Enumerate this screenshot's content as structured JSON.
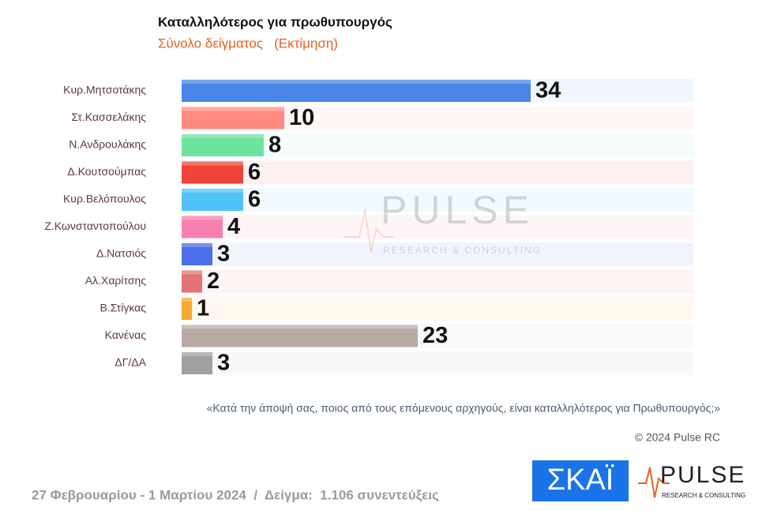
{
  "chart_data": {
    "type": "bar",
    "orientation": "horizontal",
    "title": "Καταλληλότερος για πρωθυπουργός",
    "subtitle": "Σύνολο δείγματος   (Εκτίμηση)",
    "categories": [
      "Κυρ.Μητσοτάκης",
      "Στ.Κασσελάκης",
      "Ν.Ανδρουλάκης",
      "Δ.Κουτσούμπας",
      "Κυρ.Βελόπουλος",
      "Ζ.Κωνσταντοπούλου",
      "Δ.Νατσιός",
      "Αλ.Χαρίτσης",
      "Β.Στίγκας",
      "Κανένας",
      "ΔΓ/ΔΑ"
    ],
    "values": [
      34,
      10,
      8,
      6,
      6,
      4,
      3,
      2,
      1,
      23,
      3
    ],
    "colors": [
      "#4a86e8",
      "#ff8a80",
      "#6ee3a0",
      "#f0443a",
      "#4fc3f7",
      "#f77fb0",
      "#4a6fe8",
      "#e57373",
      "#f7a830",
      "#b9aaa6",
      "#a0a0a0"
    ],
    "note": "«Κατά την άποψή σας, ποιος από τους επόμενους αρχηγούς, είναι καταλληλότερος για Πρωθυπουργός;»"
  },
  "watermark": {
    "name": "PULSE",
    "tagline": "RESEARCH & CONSULTING"
  },
  "copyright": "© 2024 Pulse RC",
  "footer": "27 Φεβρουαρίου - 1 Μαρτίου 2024  /  Δείγμα:  1.106 συνεντεύξεις",
  "logos": {
    "skai": "ΣΚΑΪ",
    "pulse": "PULSE",
    "pulse_tagline": "RESEARCH & CONSULTING"
  }
}
